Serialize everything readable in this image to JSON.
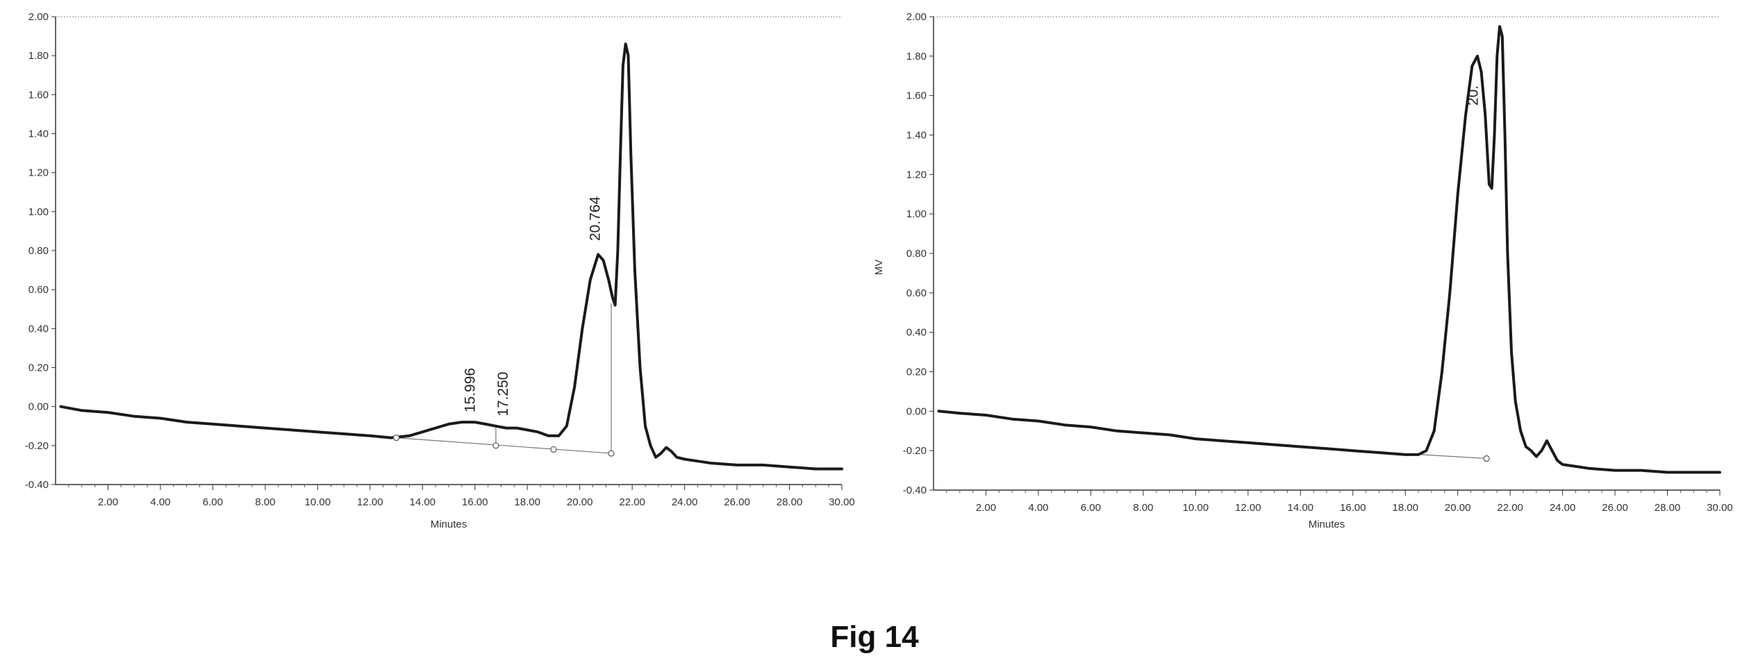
{
  "figure": {
    "caption": "Fig 14"
  },
  "chart_data": [
    {
      "type": "line",
      "xlabel": "Minutes",
      "ylabel": "",
      "xlim": [
        0,
        30
      ],
      "ylim": [
        -0.4,
        2.0
      ],
      "xticks": [
        2,
        4,
        6,
        8,
        10,
        12,
        14,
        16,
        18,
        20,
        22,
        24,
        26,
        28,
        30
      ],
      "xtick_labels": [
        "2.00",
        "4.00",
        "6.00",
        "8.00",
        "10.00",
        "12.00",
        "14.00",
        "16.00",
        "18.00",
        "20.00",
        "22.00",
        "24.00",
        "26.00",
        "28.00",
        "30.00"
      ],
      "yticks": [
        -0.4,
        -0.2,
        0,
        0.2,
        0.4,
        0.6,
        0.8,
        1.0,
        1.2,
        1.4,
        1.6,
        1.8,
        2.0
      ],
      "ytick_labels": [
        "-0.40",
        "-0.20",
        "0.00",
        "0.20",
        "0.40",
        "0.60",
        "0.80",
        "1.00",
        "1.20",
        "1.40",
        "1.60",
        "1.80",
        "2.00"
      ],
      "series": [
        {
          "x": [
            0.2,
            1,
            2,
            3,
            4,
            5,
            6,
            7,
            8,
            9,
            10,
            11,
            12,
            12.8,
            13.5,
            14,
            14.5,
            15,
            15.5,
            16,
            16.4,
            16.8,
            17.2,
            17.6,
            18,
            18.4,
            18.8,
            19.2,
            19.5,
            19.8,
            20.1,
            20.4,
            20.7,
            20.9,
            21.1,
            21.25,
            21.35,
            21.45,
            21.55,
            21.65,
            21.75,
            21.85,
            21.95,
            22.1,
            22.3,
            22.5,
            22.7,
            22.9,
            23.1,
            23.3,
            23.5,
            23.7,
            24,
            24.5,
            25,
            26,
            27,
            28,
            29,
            30
          ],
          "y": [
            0.0,
            -0.02,
            -0.03,
            -0.05,
            -0.06,
            -0.08,
            -0.09,
            -0.1,
            -0.11,
            -0.12,
            -0.13,
            -0.14,
            -0.15,
            -0.16,
            -0.15,
            -0.13,
            -0.11,
            -0.09,
            -0.08,
            -0.08,
            -0.09,
            -0.1,
            -0.11,
            -0.11,
            -0.12,
            -0.13,
            -0.15,
            -0.15,
            -0.1,
            0.1,
            0.4,
            0.65,
            0.78,
            0.75,
            0.65,
            0.56,
            0.52,
            0.8,
            1.3,
            1.75,
            1.86,
            1.8,
            1.3,
            0.7,
            0.2,
            -0.1,
            -0.2,
            -0.26,
            -0.24,
            -0.21,
            -0.23,
            -0.26,
            -0.27,
            -0.28,
            -0.29,
            -0.3,
            -0.3,
            -0.31,
            -0.32,
            -0.32
          ]
        }
      ],
      "baselines": [
        {
          "x": [
            13,
            21.2
          ],
          "y": [
            -0.16,
            -0.24
          ]
        }
      ],
      "markers": [
        {
          "x": 13,
          "y": -0.16
        },
        {
          "x": 16.8,
          "y": -0.2
        },
        {
          "x": 19.0,
          "y": -0.22
        },
        {
          "x": 21.2,
          "y": -0.24
        }
      ],
      "drops": [
        {
          "x": 16.8,
          "y_top": -0.1,
          "y_bottom": -0.2
        },
        {
          "x": 21.2,
          "y_top": 0.53,
          "y_bottom": -0.24
        }
      ],
      "annotations": [
        {
          "text": "15.996",
          "x": 15.996,
          "y": -0.08
        },
        {
          "text": "17.250",
          "x": 17.25,
          "y": -0.1
        },
        {
          "text": "20.764",
          "x": 20.764,
          "y": 0.8
        }
      ]
    },
    {
      "type": "line",
      "xlabel": "Minutes",
      "ylabel": "MV",
      "xlim": [
        0,
        30
      ],
      "ylim": [
        -0.4,
        2.0
      ],
      "xticks": [
        2,
        4,
        6,
        8,
        10,
        12,
        14,
        16,
        18,
        20,
        22,
        24,
        26,
        28,
        30
      ],
      "xtick_labels": [
        "2.00",
        "4.00",
        "6.00",
        "8.00",
        "10.00",
        "12.00",
        "14.00",
        "16.00",
        "18.00",
        "20.00",
        "22.00",
        "24.00",
        "26.00",
        "28.00",
        "30.00"
      ],
      "yticks": [
        -0.4,
        -0.2,
        0,
        0.2,
        0.4,
        0.6,
        0.8,
        1.0,
        1.2,
        1.4,
        1.6,
        1.8,
        2.0
      ],
      "ytick_labels": [
        "-0.40",
        "-0.20",
        "0.00",
        "0.20",
        "0.40",
        "0.60",
        "0.80",
        "1.00",
        "1.20",
        "1.40",
        "1.60",
        "1.80",
        "2.00"
      ],
      "series": [
        {
          "x": [
            0.2,
            1,
            2,
            3,
            4,
            5,
            6,
            7,
            8,
            9,
            10,
            11,
            12,
            13,
            14,
            15,
            16,
            17,
            18,
            18.5,
            18.8,
            19.1,
            19.4,
            19.7,
            20,
            20.3,
            20.55,
            20.75,
            20.9,
            21.05,
            21.2,
            21.3,
            21.4,
            21.5,
            21.6,
            21.7,
            21.8,
            21.9,
            22.05,
            22.2,
            22.4,
            22.6,
            22.8,
            23,
            23.2,
            23.4,
            23.6,
            23.8,
            24,
            24.5,
            25,
            26,
            27,
            28,
            29,
            30
          ],
          "y": [
            0.0,
            -0.01,
            -0.02,
            -0.04,
            -0.05,
            -0.07,
            -0.08,
            -0.1,
            -0.11,
            -0.12,
            -0.14,
            -0.15,
            -0.16,
            -0.17,
            -0.18,
            -0.19,
            -0.2,
            -0.21,
            -0.22,
            -0.22,
            -0.2,
            -0.1,
            0.2,
            0.6,
            1.1,
            1.5,
            1.75,
            1.8,
            1.72,
            1.5,
            1.15,
            1.13,
            1.4,
            1.8,
            1.95,
            1.9,
            1.4,
            0.8,
            0.3,
            0.05,
            -0.1,
            -0.18,
            -0.2,
            -0.23,
            -0.2,
            -0.15,
            -0.2,
            -0.25,
            -0.27,
            -0.28,
            -0.29,
            -0.3,
            -0.3,
            -0.31,
            -0.31,
            -0.31
          ]
        }
      ],
      "baselines": [
        {
          "x": [
            18.6,
            21.1
          ],
          "y": [
            -0.22,
            -0.24
          ]
        }
      ],
      "markers": [
        {
          "x": 21.1,
          "y": -0.24
        }
      ],
      "drops": [],
      "annotations": [
        {
          "text": "20.",
          "x": 20.764,
          "y": 1.5
        }
      ]
    }
  ]
}
